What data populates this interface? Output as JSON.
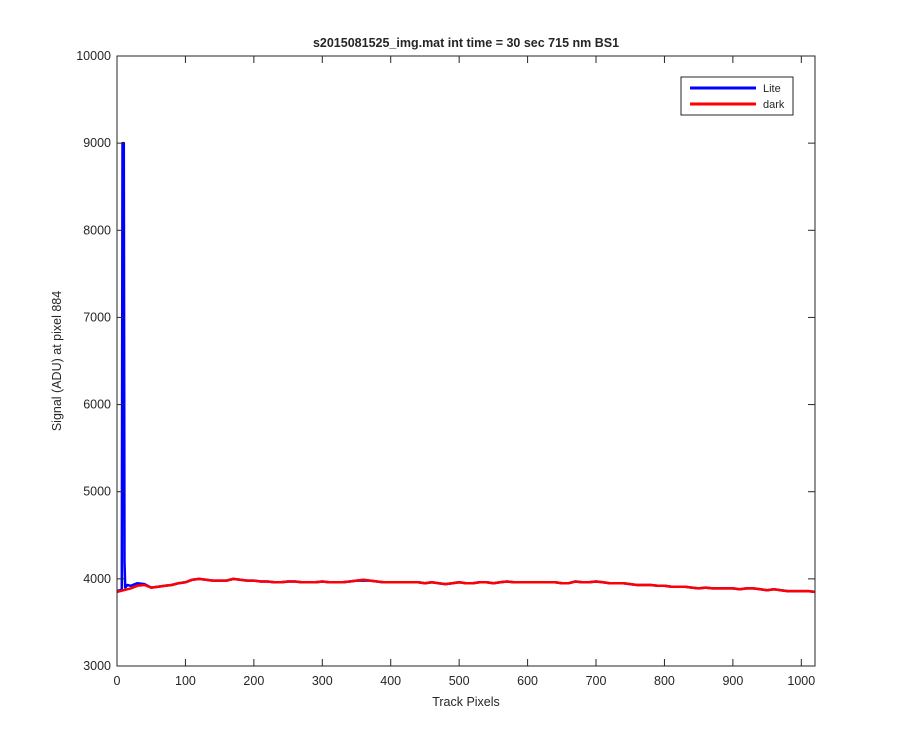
{
  "chart_data": {
    "type": "line",
    "title": "s2015081525_img.mat int time = 30 sec  715 nm BS1",
    "xlabel": "Track Pixels",
    "ylabel": "Signal (ADU) at pixel 884",
    "xlim": [
      0,
      1020
    ],
    "ylim": [
      3000,
      10000
    ],
    "xticks": [
      0,
      100,
      200,
      300,
      400,
      500,
      600,
      700,
      800,
      900,
      1000
    ],
    "yticks": [
      3000,
      4000,
      5000,
      6000,
      7000,
      8000,
      9000,
      10000
    ],
    "grid": false,
    "box": true,
    "legend_position": "top-right",
    "series": [
      {
        "name": "Lite",
        "color": "#0000ff",
        "x": [
          0,
          5,
          7,
          8,
          9,
          10,
          11,
          12,
          15,
          20,
          30,
          40,
          50,
          60,
          70,
          80,
          90,
          100,
          110,
          120,
          130,
          140,
          150,
          160,
          170,
          180,
          190,
          200,
          210,
          220,
          230,
          240,
          250,
          260,
          270,
          280,
          290,
          300,
          310,
          320,
          330,
          340,
          350,
          360,
          370,
          380,
          390,
          400,
          410,
          420,
          430,
          440,
          450,
          460,
          470,
          480,
          490,
          500,
          510,
          520,
          530,
          540,
          550,
          560,
          570,
          580,
          590,
          600,
          610,
          620,
          630,
          640,
          650,
          660,
          670,
          680,
          690,
          700,
          710,
          720,
          730,
          740,
          750,
          760,
          770,
          780,
          790,
          800,
          810,
          820,
          830,
          840,
          850,
          860,
          870,
          880,
          890,
          900,
          910,
          920,
          930,
          940,
          950,
          960,
          970,
          980,
          990,
          1000,
          1010,
          1020
        ],
        "y": [
          3860,
          3870,
          3880,
          9000,
          9000,
          9000,
          4200,
          3900,
          3930,
          3920,
          3950,
          3940,
          3900,
          3910,
          3920,
          3930,
          3950,
          3960,
          3990,
          4000,
          3990,
          3980,
          3980,
          3980,
          4000,
          3990,
          3980,
          3980,
          3970,
          3970,
          3960,
          3960,
          3970,
          3970,
          3960,
          3960,
          3960,
          3970,
          3960,
          3960,
          3960,
          3970,
          3980,
          3980,
          3980,
          3970,
          3960,
          3960,
          3960,
          3960,
          3960,
          3960,
          3950,
          3960,
          3950,
          3940,
          3950,
          3960,
          3950,
          3950,
          3960,
          3960,
          3950,
          3960,
          3970,
          3960,
          3960,
          3960,
          3960,
          3960,
          3960,
          3960,
          3950,
          3950,
          3970,
          3960,
          3960,
          3970,
          3960,
          3950,
          3950,
          3950,
          3940,
          3930,
          3930,
          3930,
          3920,
          3920,
          3910,
          3910,
          3910,
          3900,
          3890,
          3900,
          3890,
          3890,
          3890,
          3890,
          3880,
          3890,
          3890,
          3880,
          3870,
          3880,
          3870,
          3860,
          3860,
          3860,
          3860,
          3850
        ]
      },
      {
        "name": "dark",
        "color": "#ff0000",
        "x": [
          0,
          10,
          20,
          30,
          40,
          50,
          60,
          70,
          80,
          90,
          100,
          110,
          120,
          130,
          140,
          150,
          160,
          170,
          180,
          190,
          200,
          210,
          220,
          230,
          240,
          250,
          260,
          270,
          280,
          290,
          300,
          310,
          320,
          330,
          340,
          350,
          360,
          370,
          380,
          390,
          400,
          410,
          420,
          430,
          440,
          450,
          460,
          470,
          480,
          490,
          500,
          510,
          520,
          530,
          540,
          550,
          560,
          570,
          580,
          590,
          600,
          610,
          620,
          630,
          640,
          650,
          660,
          670,
          680,
          690,
          700,
          710,
          720,
          730,
          740,
          750,
          760,
          770,
          780,
          790,
          800,
          810,
          820,
          830,
          840,
          850,
          860,
          870,
          880,
          890,
          900,
          910,
          920,
          930,
          940,
          950,
          960,
          970,
          980,
          990,
          1000,
          1010,
          1020
        ],
        "y": [
          3850,
          3870,
          3890,
          3920,
          3930,
          3900,
          3910,
          3920,
          3930,
          3950,
          3960,
          3990,
          4000,
          3990,
          3980,
          3980,
          3980,
          4000,
          3990,
          3980,
          3980,
          3970,
          3970,
          3960,
          3960,
          3970,
          3970,
          3960,
          3960,
          3960,
          3970,
          3960,
          3960,
          3960,
          3970,
          3980,
          3990,
          3980,
          3970,
          3960,
          3960,
          3960,
          3960,
          3960,
          3960,
          3950,
          3960,
          3950,
          3940,
          3950,
          3960,
          3950,
          3950,
          3960,
          3960,
          3950,
          3960,
          3970,
          3960,
          3960,
          3960,
          3960,
          3960,
          3960,
          3960,
          3950,
          3950,
          3970,
          3960,
          3960,
          3970,
          3960,
          3950,
          3950,
          3950,
          3940,
          3930,
          3930,
          3930,
          3920,
          3920,
          3910,
          3910,
          3910,
          3900,
          3890,
          3900,
          3890,
          3890,
          3890,
          3890,
          3880,
          3890,
          3890,
          3880,
          3870,
          3880,
          3870,
          3860,
          3860,
          3860,
          3860,
          3850
        ]
      }
    ]
  }
}
